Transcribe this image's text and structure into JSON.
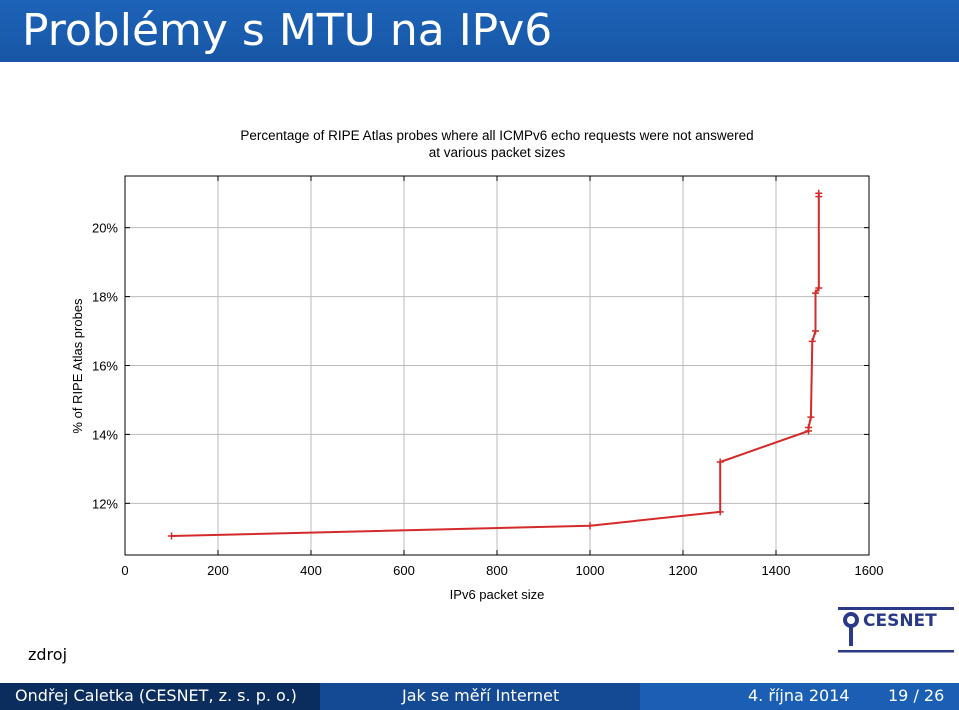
{
  "slide": {
    "title": "Problémy s MTU na IPv6",
    "source_label": "zdroj",
    "logo_text": "CESNET"
  },
  "footer": {
    "author": "Ondřej Caletka  (CESNET, z. s. p. o.)",
    "talk_title": "Jak se měří Internet",
    "date": "4. října 2014",
    "page": "19 / 26"
  },
  "chart_data": {
    "type": "line",
    "title_lines": [
      "Percentage of RIPE Atlas probes where all ICMPv6 echo requests were not answered",
      "at various packet sizes"
    ],
    "xlabel": "IPv6 packet size",
    "ylabel": "% of RIPE Atlas probes",
    "xlim": [
      0,
      1600
    ],
    "ylim": [
      10.5,
      21.5
    ],
    "x_ticks": [
      "0",
      "200",
      "400",
      "600",
      "800",
      "1000",
      "1200",
      "1400",
      "1600"
    ],
    "y_ticks": [
      {
        "value": 12,
        "label": "12%"
      },
      {
        "value": 14,
        "label": "14%"
      },
      {
        "value": 16,
        "label": "16%"
      },
      {
        "value": 18,
        "label": "18%"
      },
      {
        "value": 20,
        "label": "20%"
      }
    ],
    "grid": true,
    "series_color": "#d42a2a",
    "points": [
      [
        100,
        11.05
      ],
      [
        1000,
        11.35
      ],
      [
        1280,
        11.75
      ],
      [
        1280,
        13.2
      ],
      [
        1470,
        14.1
      ],
      [
        1470,
        14.2
      ],
      [
        1475,
        14.5
      ],
      [
        1478,
        16.7
      ],
      [
        1485,
        17.0
      ],
      [
        1485,
        18.1
      ],
      [
        1492,
        18.25
      ],
      [
        1492,
        20.9
      ],
      [
        1492,
        21.0
      ]
    ]
  }
}
